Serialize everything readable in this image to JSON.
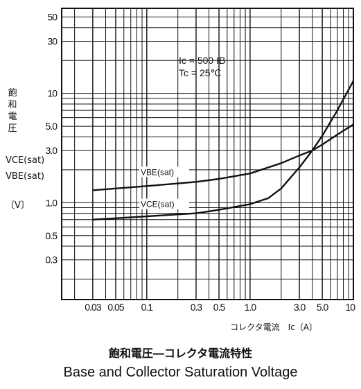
{
  "chart_data": {
    "type": "line",
    "x_scale": "log",
    "y_scale": "log",
    "xlim": [
      0.015,
      10
    ],
    "ylim": [
      0.13,
      60
    ],
    "grid": true,
    "x_ticks": [
      {
        "v": 0.03,
        "label": "0.03"
      },
      {
        "v": 0.05,
        "label": "0.05"
      },
      {
        "v": 0.1,
        "label": "0.1"
      },
      {
        "v": 0.3,
        "label": "0.3"
      },
      {
        "v": 0.5,
        "label": "0.5"
      },
      {
        "v": 1.0,
        "label": "1.0"
      },
      {
        "v": 3.0,
        "label": "3.0"
      },
      {
        "v": 5.0,
        "label": "5.0"
      },
      {
        "v": 10,
        "label": "10"
      }
    ],
    "y_ticks": [
      {
        "v": 50,
        "label": "50"
      },
      {
        "v": 30,
        "label": "30"
      },
      {
        "v": 10,
        "label": "10"
      },
      {
        "v": 5.0,
        "label": "5.0"
      },
      {
        "v": 3.0,
        "label": "3.0"
      },
      {
        "v": 1.0,
        "label": "1.0"
      },
      {
        "v": 0.5,
        "label": "0.5"
      },
      {
        "v": 0.3,
        "label": "0.3"
      }
    ],
    "ylabel_lines": [
      "飽",
      "和",
      "電",
      "圧",
      "VCE(sat)",
      "VBE(sat)",
      "〔V〕"
    ],
    "xlabel": "コレクタ電流　Ic〔A〕",
    "conditions": [
      "Ic = 500 IB",
      "Tc = 25℃"
    ],
    "series": [
      {
        "name": "VBE(sat)",
        "x": [
          0.03,
          0.05,
          0.1,
          0.3,
          0.5,
          1.0,
          2.0,
          3.0,
          4.0,
          5.0,
          7.0,
          10
        ],
        "y": [
          1.3,
          1.35,
          1.42,
          1.55,
          1.65,
          1.85,
          2.3,
          2.7,
          3.0,
          3.4,
          4.2,
          5.2
        ]
      },
      {
        "name": "VCE(sat)",
        "x": [
          0.03,
          0.05,
          0.1,
          0.3,
          0.5,
          1.0,
          1.5,
          2.0,
          3.0,
          4.0,
          5.0,
          7.0,
          10
        ],
        "y": [
          0.7,
          0.72,
          0.75,
          0.8,
          0.86,
          0.97,
          1.1,
          1.35,
          2.1,
          3.0,
          4.1,
          7.0,
          13
        ]
      }
    ]
  },
  "caption": {
    "japanese": "飽和電圧―コレクタ電流特性",
    "english": "Base and Collector Saturation Voltage"
  }
}
